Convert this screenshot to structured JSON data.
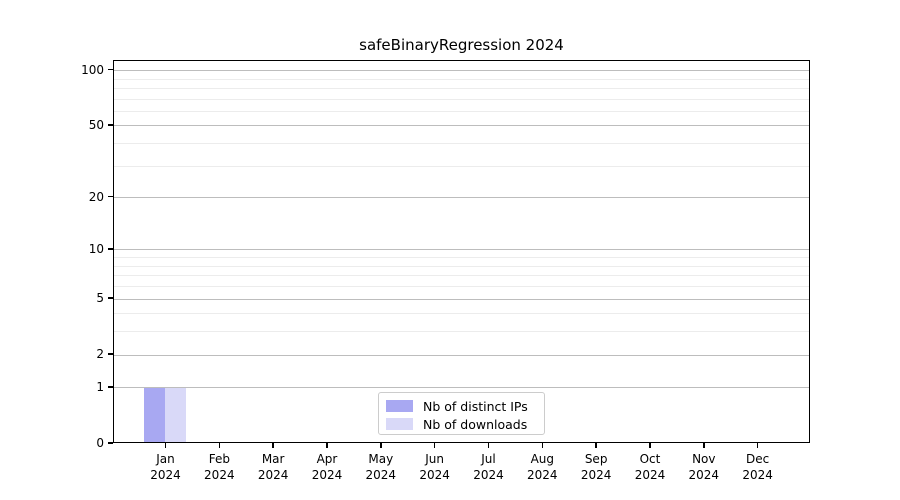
{
  "title": "safeBinaryRegression 2024",
  "chart_data": {
    "type": "bar",
    "title": "safeBinaryRegression 2024",
    "categories": [
      {
        "month": "Jan",
        "year": "2024"
      },
      {
        "month": "Feb",
        "year": "2024"
      },
      {
        "month": "Mar",
        "year": "2024"
      },
      {
        "month": "Apr",
        "year": "2024"
      },
      {
        "month": "May",
        "year": "2024"
      },
      {
        "month": "Jun",
        "year": "2024"
      },
      {
        "month": "Jul",
        "year": "2024"
      },
      {
        "month": "Aug",
        "year": "2024"
      },
      {
        "month": "Sep",
        "year": "2024"
      },
      {
        "month": "Oct",
        "year": "2024"
      },
      {
        "month": "Nov",
        "year": "2024"
      },
      {
        "month": "Dec",
        "year": "2024"
      }
    ],
    "series": [
      {
        "name": "Nb of distinct IPs",
        "color": "#a8a8f2",
        "values": [
          1,
          0,
          0,
          0,
          0,
          0,
          0,
          0,
          0,
          0,
          0,
          0
        ]
      },
      {
        "name": "Nb of downloads",
        "color": "#d9d9f8",
        "values": [
          1,
          0,
          0,
          0,
          0,
          0,
          0,
          0,
          0,
          0,
          0,
          0
        ]
      }
    ],
    "yscale": "log1p",
    "ylim": [
      0,
      112.7
    ],
    "yticks": [
      100,
      50,
      20,
      10,
      5,
      2,
      1,
      0
    ],
    "minor_gridlines": [
      3,
      4,
      6,
      7,
      8,
      9,
      30,
      40,
      60,
      70,
      80,
      90
    ],
    "grid": true,
    "legend_position": "lower center"
  },
  "colors": {
    "background": "#ffffff",
    "spine": "#000000",
    "major_grid": "#bdbdbd",
    "minor_grid": "#ececec",
    "legend_border": "#cccccc",
    "text": "#000000"
  }
}
